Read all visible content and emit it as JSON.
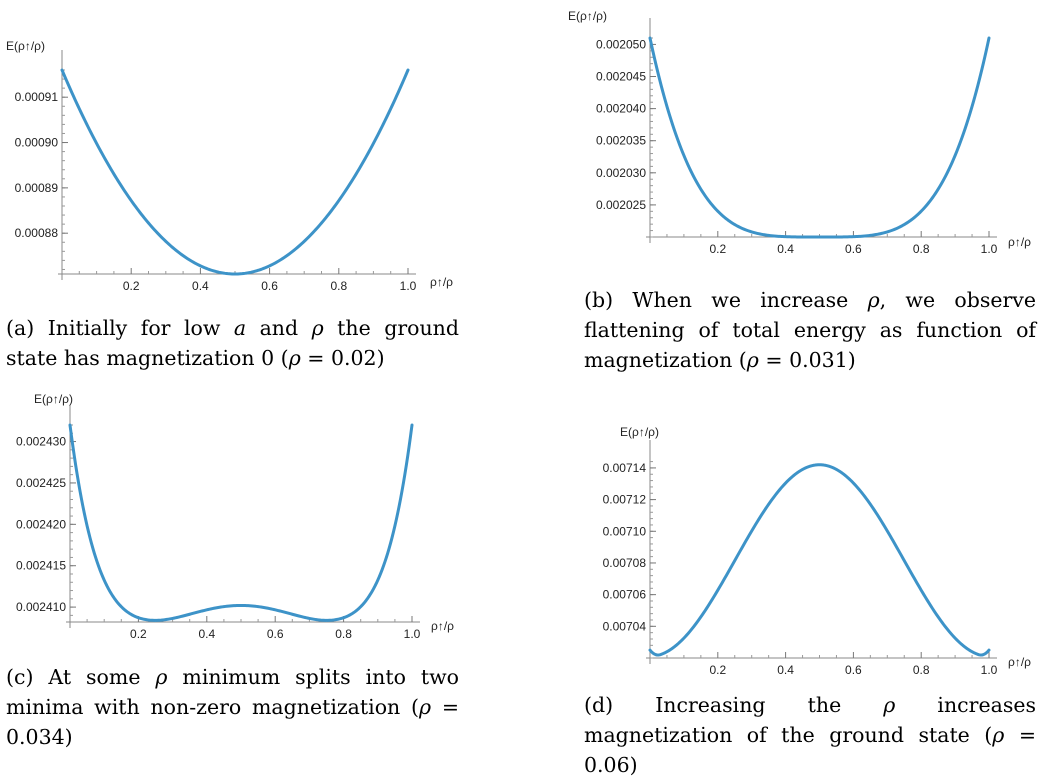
{
  "chart_data": [
    {
      "id": "a",
      "type": "line",
      "ylabel": "E(ρ↑/ρ)",
      "xlabel": "ρ↑/ρ",
      "xlim": [
        0,
        1.0
      ],
      "ylim": [
        0.000871,
        0.000916
      ],
      "xticks": [
        0.2,
        0.4,
        0.6,
        0.8,
        1.0
      ],
      "xtick_labels": [
        "0.2",
        "0.4",
        "0.6",
        "0.8",
        "1.0"
      ],
      "yticks": [
        0.00088,
        0.00089,
        0.0009,
        0.00091
      ],
      "ytick_labels": [
        "0.00088",
        "0.00089",
        "0.00090",
        "0.00091"
      ],
      "curve": {
        "kind": "parabola",
        "min_x": 0.5,
        "min_y": 0.000871,
        "end_y": 0.000916
      },
      "color": "#3d93c8",
      "caption": "(a) Initially for low a and ρ the ground state has magnetization 0 (ρ = 0.02)"
    },
    {
      "id": "b",
      "type": "line",
      "ylabel": "E(ρ↑/ρ)",
      "xlabel": "ρ↑/ρ",
      "xlim": [
        0,
        1.0
      ],
      "ylim": [
        0.00202,
        0.002051
      ],
      "xticks": [
        0.2,
        0.4,
        0.6,
        0.8,
        1.0
      ],
      "xtick_labels": [
        "0.2",
        "0.4",
        "0.6",
        "0.8",
        "1.0"
      ],
      "yticks": [
        0.002025,
        0.00203,
        0.002035,
        0.00204,
        0.002045,
        0.00205
      ],
      "ytick_labels": [
        "0.002025",
        "0.002030",
        "0.002035",
        "0.002040",
        "0.002045",
        "0.002050"
      ],
      "curve": {
        "kind": "quartic",
        "min_x": 0.5,
        "min_y": 0.00202,
        "end_y": 0.002051
      },
      "color": "#3d93c8",
      "caption": "(b) When we increase ρ, we observe flattening of total energy as function of magnetization (ρ = 0.031)"
    },
    {
      "id": "c",
      "type": "line",
      "ylabel": "E(ρ↑/ρ)",
      "xlabel": "ρ↑/ρ",
      "xlim": [
        0,
        1.0
      ],
      "ylim": [
        0.0024082,
        0.002432
      ],
      "xticks": [
        0.2,
        0.4,
        0.6,
        0.8,
        1.0
      ],
      "xtick_labels": [
        "0.2",
        "0.4",
        "0.6",
        "0.8",
        "1.0"
      ],
      "yticks": [
        0.00241,
        0.002415,
        0.00242,
        0.002425,
        0.00243
      ],
      "ytick_labels": [
        "0.002410",
        "0.002415",
        "0.002420",
        "0.002425",
        "0.002430"
      ],
      "curve": {
        "kind": "double_well",
        "minima_x": [
          0.25,
          0.75
        ],
        "min_y": 0.0024084,
        "center_y": 0.0024102,
        "end_y": 0.002432
      },
      "color": "#3d93c8",
      "caption": "(c) At some ρ minimum splits into two minima with non-zero magnetization (ρ = 0.034)"
    },
    {
      "id": "d",
      "type": "line",
      "ylabel": "E(ρ↑/ρ)",
      "xlabel": "ρ↑/ρ",
      "xlim": [
        0,
        1.0
      ],
      "ylim": [
        0.00702,
        0.007145
      ],
      "xticks": [
        0.2,
        0.4,
        0.6,
        0.8,
        1.0
      ],
      "xtick_labels": [
        "0.2",
        "0.4",
        "0.6",
        "0.8",
        "1.0"
      ],
      "yticks": [
        0.00704,
        0.00706,
        0.00708,
        0.0071,
        0.00712,
        0.00714
      ],
      "ytick_labels": [
        "0.00704",
        "0.00706",
        "0.00708",
        "0.00710",
        "0.00712",
        "0.00714"
      ],
      "curve": {
        "kind": "hump",
        "max_x": 0.5,
        "max_y": 0.007142,
        "min_x": [
          0.03,
          0.97
        ],
        "min_y": 0.007021,
        "end_y": 0.007025
      },
      "color": "#3d93c8",
      "caption": "(d) Increasing the ρ increases magnetization of the ground state (ρ = 0.06)"
    }
  ],
  "captions": {
    "a": {
      "pre": "(a) Initially for low ",
      "var": "a",
      "mid": " and ",
      "rho": "ρ",
      "post": " the ground state has magnetization 0 (",
      "rho2": "ρ",
      "eq": " = 0.02)"
    },
    "b": {
      "pre": "(b) When we increase ",
      "rho": "ρ",
      "post": ", we observe flattening of total energy as function of magnetization (",
      "rho2": "ρ",
      "eq": " = 0.031)"
    },
    "c": {
      "pre": "(c) At some ",
      "rho": "ρ",
      "post": " minimum splits into two minima with non-zero magnetization (",
      "rho2": "ρ",
      "eq": " = 0.034)"
    },
    "d": {
      "pre": "(d) Increasing the ",
      "rho": "ρ",
      "post": " increases magnetization of the ground state (",
      "rho2": "ρ",
      "eq": " = 0.06)"
    }
  }
}
